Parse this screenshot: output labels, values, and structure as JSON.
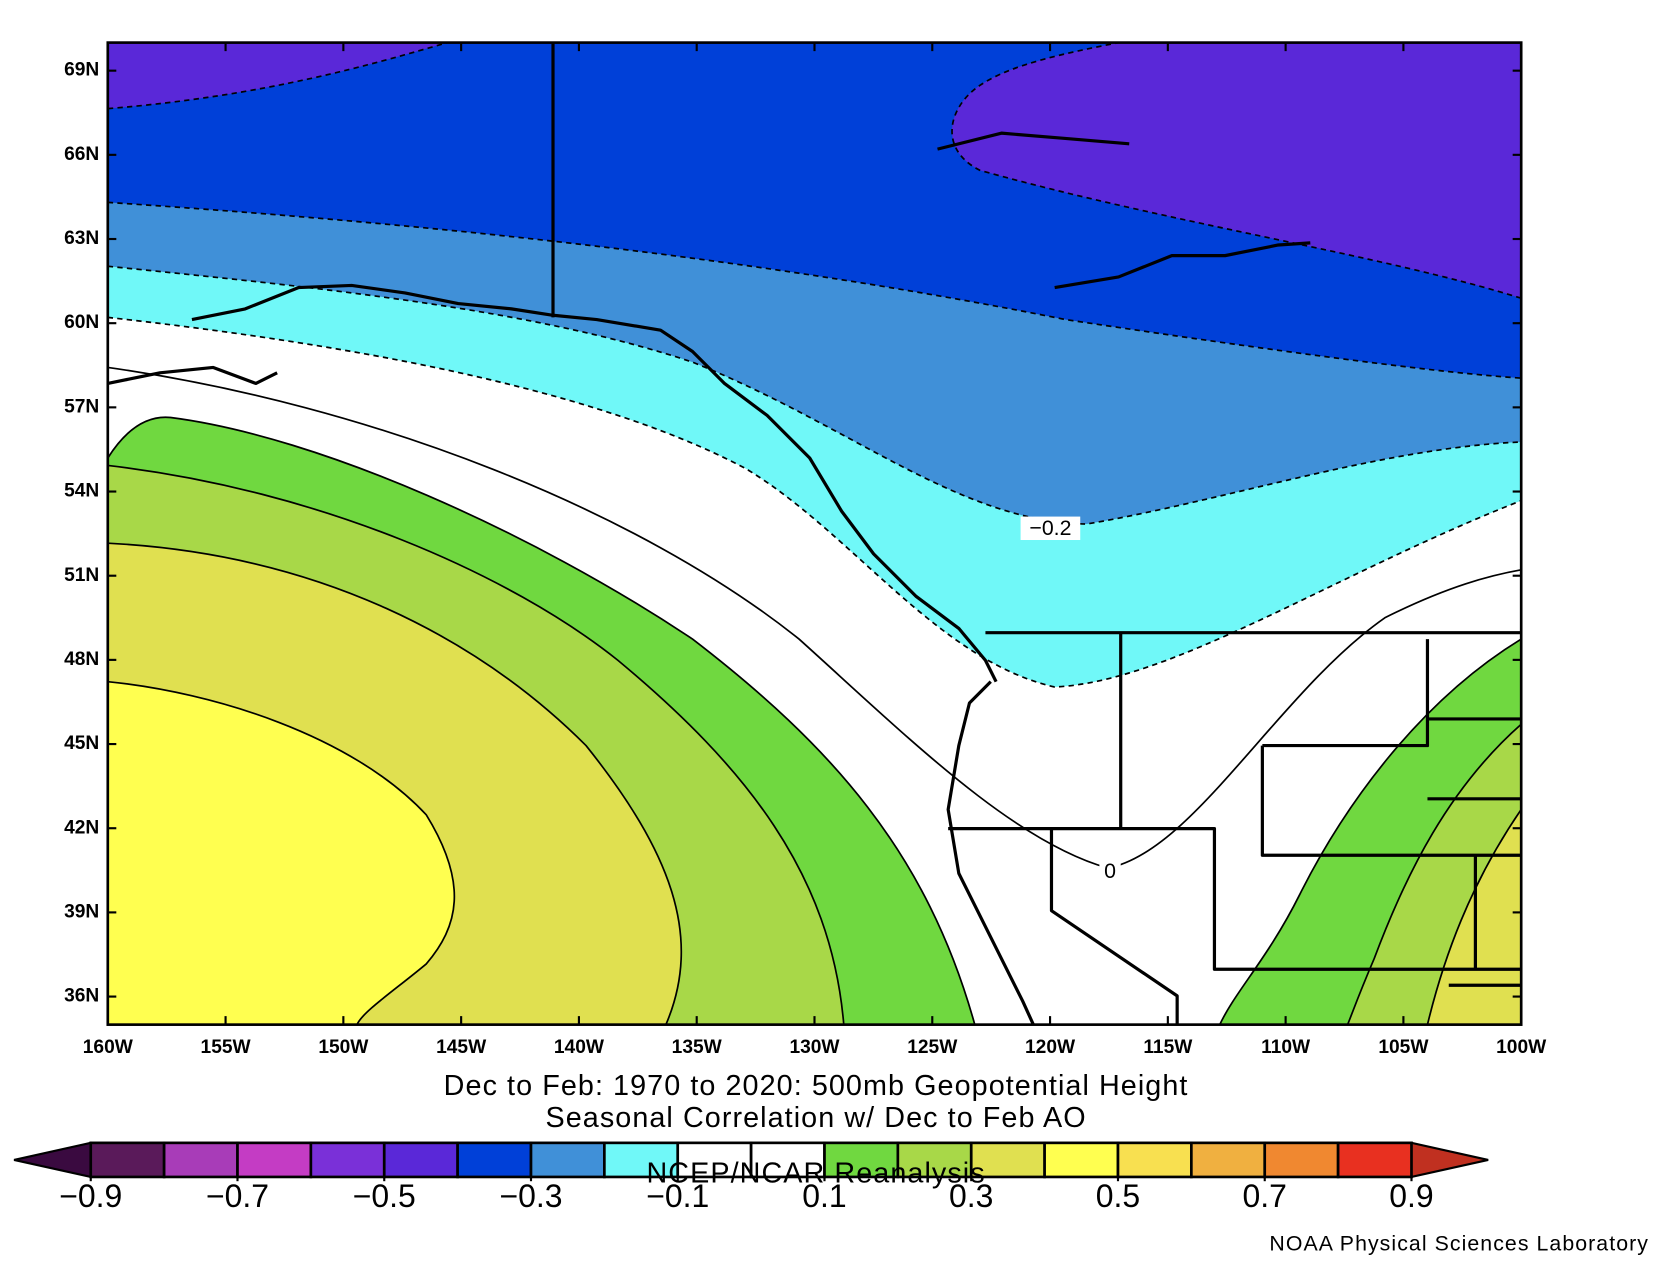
{
  "map": {
    "title": [
      "Dec to Feb: 1970 to 2020: 500mb Geopotential Height",
      "Seasonal Correlation w/ Dec to Feb AO"
    ],
    "xlim": [
      -160,
      -100
    ],
    "ylim": [
      35,
      70
    ],
    "xticks": [
      {
        "value": -160,
        "label": "160W"
      },
      {
        "value": -155,
        "label": "155W"
      },
      {
        "value": -150,
        "label": "150W"
      },
      {
        "value": -145,
        "label": "145W"
      },
      {
        "value": -140,
        "label": "140W"
      },
      {
        "value": -135,
        "label": "135W"
      },
      {
        "value": -130,
        "label": "130W"
      },
      {
        "value": -125,
        "label": "125W"
      },
      {
        "value": -120,
        "label": "120W"
      },
      {
        "value": -115,
        "label": "115W"
      },
      {
        "value": -110,
        "label": "110W"
      },
      {
        "value": -105,
        "label": "105W"
      },
      {
        "value": -100,
        "label": "100W"
      }
    ],
    "yticks": [
      {
        "value": 36,
        "label": "36N"
      },
      {
        "value": 39,
        "label": "39N"
      },
      {
        "value": 42,
        "label": "42N"
      },
      {
        "value": 45,
        "label": "45N"
      },
      {
        "value": 48,
        "label": "48N"
      },
      {
        "value": 51,
        "label": "51N"
      },
      {
        "value": 54,
        "label": "54N"
      },
      {
        "value": 57,
        "label": "57N"
      },
      {
        "value": 60,
        "label": "60N"
      },
      {
        "value": 63,
        "label": "63N"
      },
      {
        "value": 66,
        "label": "66N"
      },
      {
        "value": 69,
        "label": "69N"
      }
    ],
    "contour_labels": [
      "−0.2",
      "0"
    ]
  },
  "colorbar": {
    "ticks": [
      {
        "value": -0.9,
        "label": "−0.9"
      },
      {
        "value": -0.7,
        "label": "−0.7"
      },
      {
        "value": -0.5,
        "label": "−0.5"
      },
      {
        "value": -0.3,
        "label": "−0.3"
      },
      {
        "value": -0.1,
        "label": "−0.1"
      },
      {
        "value": 0.1,
        "label": "0.1"
      },
      {
        "value": 0.3,
        "label": "0.3"
      },
      {
        "value": 0.5,
        "label": "0.5"
      },
      {
        "value": 0.7,
        "label": "0.7"
      },
      {
        "value": 0.9,
        "label": "0.9"
      }
    ],
    "colors": [
      "#5a1a5a",
      "#a83cb8",
      "#c43cc4",
      "#7a30d8",
      "#5a28d8",
      "#0040d8",
      "#4090d8",
      "#70f8f8",
      "#ffffff",
      "#ffffff",
      "#70d840",
      "#a8d848",
      "#e0e050",
      "#ffff50",
      "#f8e050",
      "#f0b040",
      "#f08830",
      "#e83020"
    ],
    "under_color": "#3a0a40",
    "over_color": "#c03020"
  },
  "source": "NCEP/NCAR Reanalysis",
  "credit": "NOAA Physical Sciences Laboratory"
}
